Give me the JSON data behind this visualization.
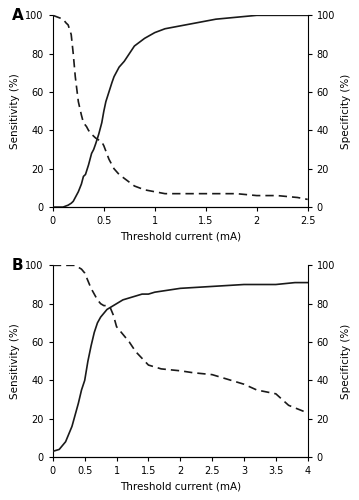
{
  "panel_A": {
    "label": "A",
    "xlim": [
      0,
      2.5
    ],
    "xticks": [
      0,
      0.5,
      1.0,
      1.5,
      2.0,
      2.5
    ],
    "ylim": [
      0,
      100
    ],
    "yticks": [
      0,
      20,
      40,
      60,
      80,
      100
    ],
    "xlabel": "Threshold current (mA)",
    "ylabel_left": "Sensitivity (%)",
    "ylabel_right": "Specificity (%)",
    "sensitivity_x": [
      0.0,
      0.1,
      0.15,
      0.18,
      0.2,
      0.22,
      0.25,
      0.28,
      0.3,
      0.32,
      0.35,
      0.38,
      0.4,
      0.42,
      0.45,
      0.48,
      0.5,
      0.52,
      0.55,
      0.58,
      0.6,
      0.62,
      0.65,
      0.7,
      0.75,
      0.8,
      0.85,
      0.9,
      1.0,
      1.1,
      1.2,
      1.4,
      1.6,
      1.8,
      2.0,
      2.2,
      2.4,
      2.5
    ],
    "sensitivity_y": [
      0,
      0,
      1,
      2,
      3,
      5,
      8,
      12,
      16,
      17,
      22,
      28,
      30,
      33,
      38,
      44,
      50,
      55,
      60,
      65,
      68,
      70,
      73,
      76,
      80,
      84,
      86,
      88,
      91,
      93,
      94,
      96,
      98,
      99,
      100,
      100,
      100,
      100
    ],
    "specificity_x": [
      0.0,
      0.1,
      0.13,
      0.15,
      0.18,
      0.2,
      0.22,
      0.25,
      0.28,
      0.3,
      0.33,
      0.35,
      0.38,
      0.4,
      0.42,
      0.45,
      0.48,
      0.5,
      0.55,
      0.6,
      0.65,
      0.7,
      0.75,
      0.8,
      0.85,
      0.9,
      1.0,
      1.1,
      1.2,
      1.5,
      1.8,
      2.0,
      2.2,
      2.4,
      2.5
    ],
    "specificity_y": [
      100,
      98,
      96,
      95,
      90,
      80,
      68,
      55,
      48,
      44,
      42,
      40,
      38,
      37,
      36,
      35,
      34,
      32,
      25,
      20,
      17,
      15,
      13,
      11,
      10,
      9,
      8,
      7,
      7,
      7,
      7,
      6,
      6,
      5,
      4
    ]
  },
  "panel_B": {
    "label": "B",
    "xlim": [
      0,
      4.0
    ],
    "xticks": [
      0,
      0.5,
      1.0,
      1.5,
      2.0,
      2.5,
      3.0,
      3.5,
      4.0
    ],
    "ylim": [
      0,
      100
    ],
    "yticks": [
      0,
      20,
      40,
      60,
      80,
      100
    ],
    "xlabel": "Threshold current (mA)",
    "ylabel_left": "Sensitivity (%)",
    "ylabel_right": "Specificity (%)",
    "sensitivity_x": [
      0.0,
      0.1,
      0.15,
      0.2,
      0.25,
      0.3,
      0.35,
      0.4,
      0.45,
      0.5,
      0.55,
      0.6,
      0.65,
      0.7,
      0.75,
      0.8,
      0.85,
      0.9,
      1.0,
      1.1,
      1.2,
      1.3,
      1.4,
      1.5,
      1.6,
      1.8,
      2.0,
      2.5,
      3.0,
      3.5,
      3.8,
      4.0
    ],
    "sensitivity_y": [
      3,
      4,
      6,
      8,
      12,
      16,
      22,
      28,
      35,
      40,
      50,
      58,
      65,
      70,
      73,
      75,
      77,
      78,
      80,
      82,
      83,
      84,
      85,
      85,
      86,
      87,
      88,
      89,
      90,
      90,
      91,
      91
    ],
    "specificity_x": [
      0.0,
      0.1,
      0.15,
      0.2,
      0.25,
      0.3,
      0.35,
      0.4,
      0.45,
      0.5,
      0.55,
      0.6,
      0.65,
      0.7,
      0.75,
      0.8,
      0.85,
      0.9,
      0.95,
      1.0,
      1.1,
      1.2,
      1.3,
      1.5,
      1.7,
      2.0,
      2.2,
      2.5,
      2.8,
      3.0,
      3.2,
      3.5,
      3.7,
      4.0
    ],
    "specificity_y": [
      100,
      100,
      100,
      100,
      100,
      100,
      100,
      99,
      98,
      96,
      92,
      88,
      85,
      82,
      80,
      79,
      79,
      78,
      74,
      68,
      64,
      60,
      55,
      48,
      46,
      45,
      44,
      43,
      40,
      38,
      35,
      33,
      27,
      23
    ]
  },
  "line_color": "#1a1a1a",
  "line_width": 1.2,
  "background_color": "#ffffff"
}
